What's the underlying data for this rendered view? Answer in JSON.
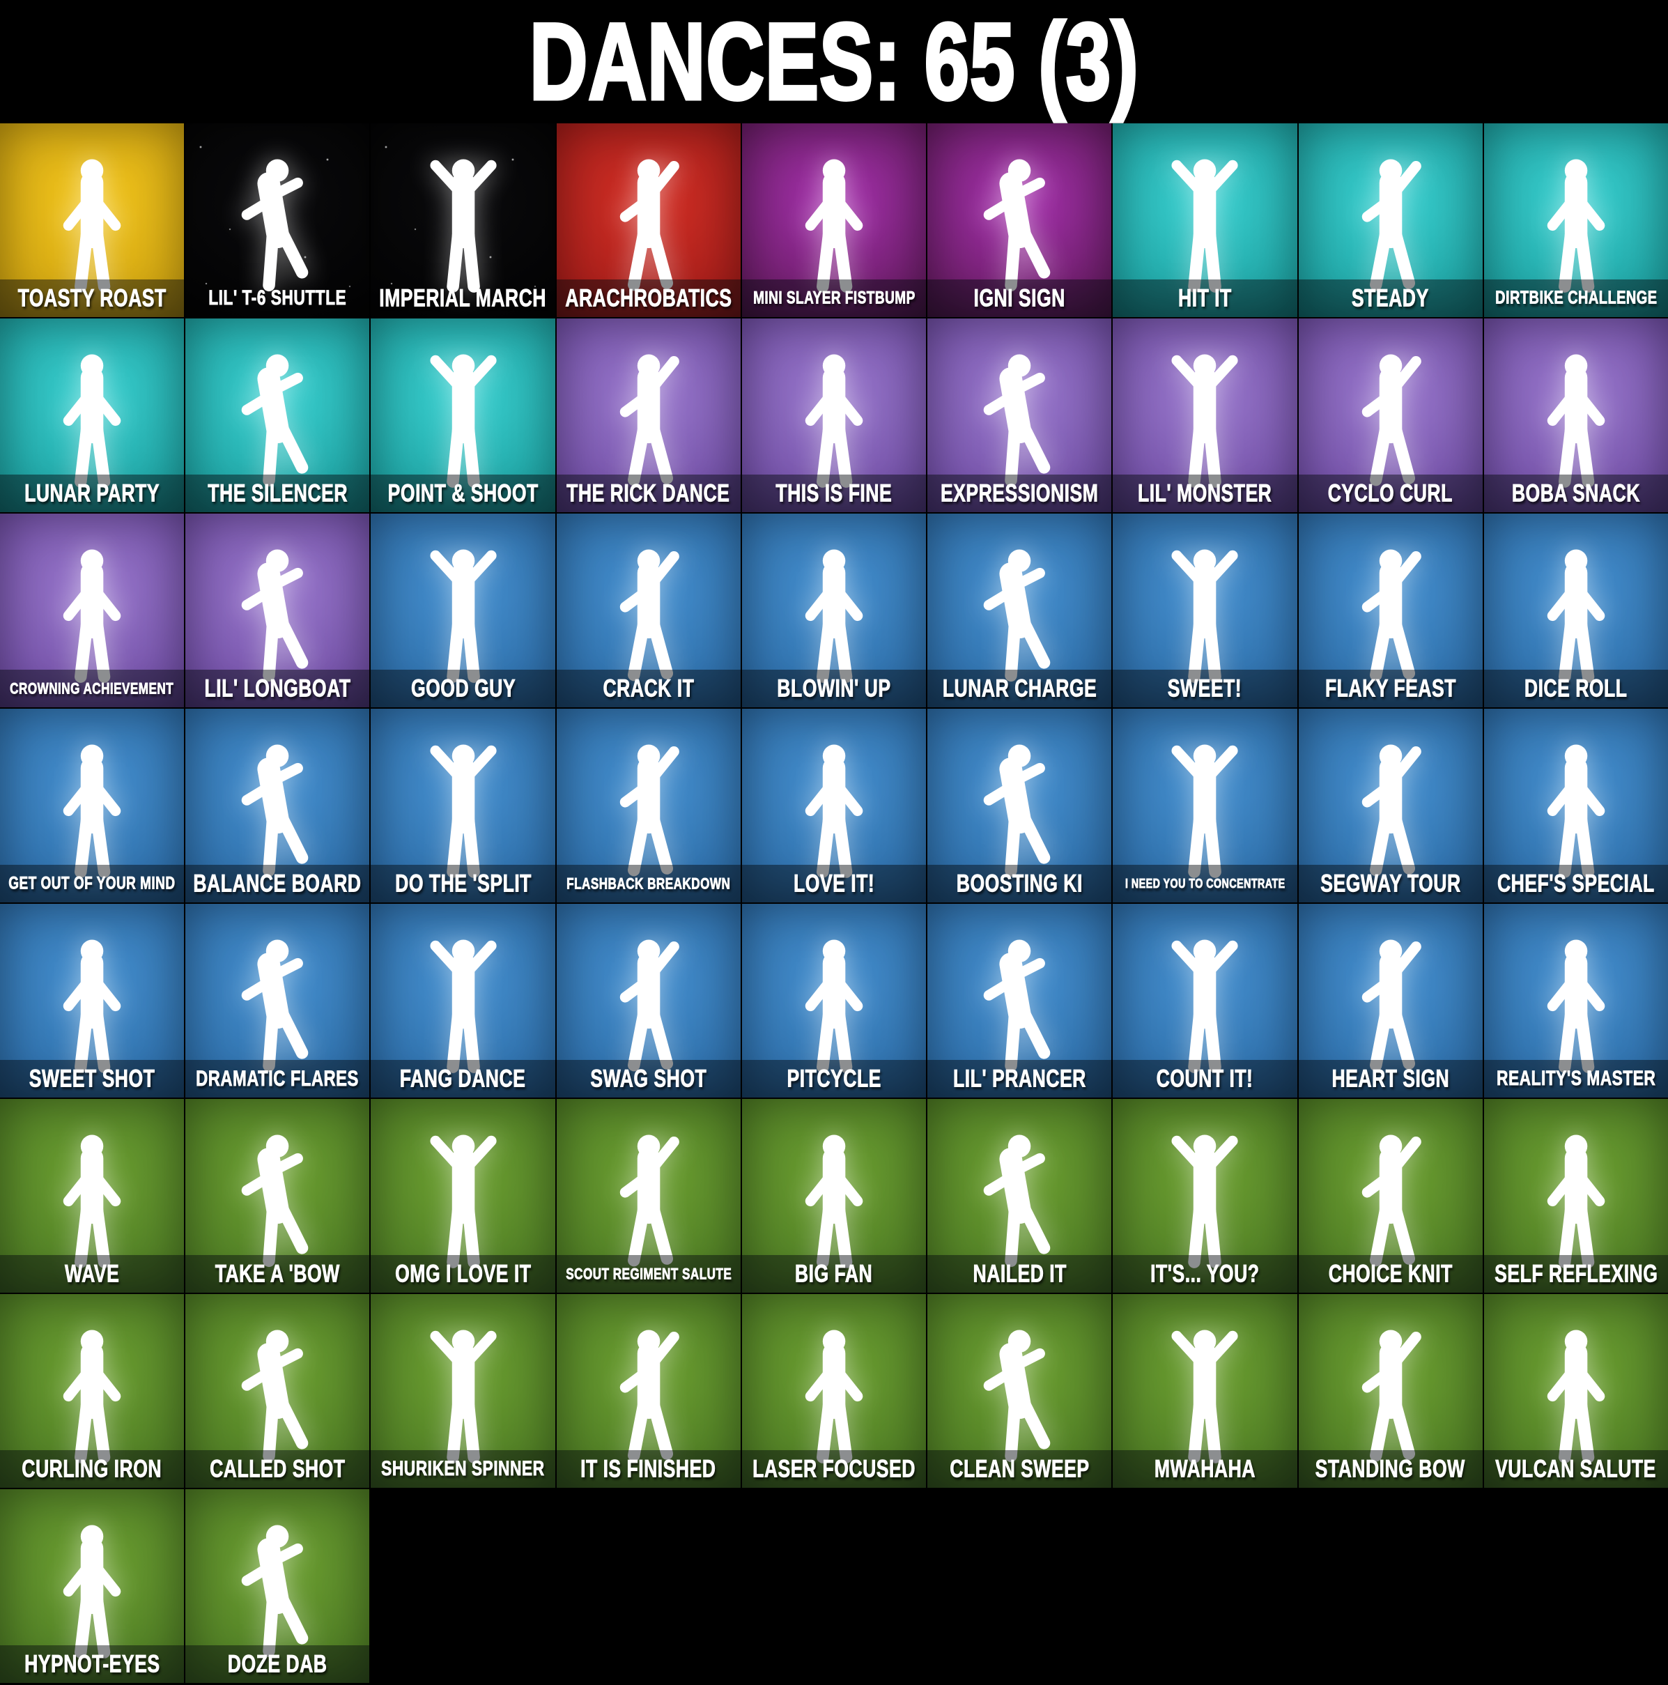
{
  "title": "DANCES: 65 (3)",
  "total_count": 65,
  "parenthetical_count": 3,
  "tile_icon": "dancer-silhouette-icon",
  "rarity_colors": {
    "gold": {
      "center": "#f2c51d",
      "edge": "#bd920a"
    },
    "dark": {
      "center": "#0b0b0d",
      "edge": "#000000"
    },
    "red": {
      "center": "#d23026",
      "edge": "#8c1212"
    },
    "magenta": {
      "center": "#a632ae",
      "edge": "#47103c"
    },
    "teal": {
      "center": "#3bd0d0",
      "edge": "#0d8a8a"
    },
    "purple": {
      "center": "#9a79cd",
      "edge": "#5c3892"
    },
    "blue": {
      "center": "#4690cf",
      "edge": "#1f5b95"
    },
    "green": {
      "center": "#6da032",
      "edge": "#3d681c"
    }
  },
  "rows": [
    {
      "tiles": [
        {
          "label": "TOASTY ROAST",
          "rarity": "gold"
        },
        {
          "label": "LIL' T-6 SHUTTLE",
          "rarity": "dark"
        },
        {
          "label": "IMPERIAL MARCH",
          "rarity": "dark"
        },
        {
          "label": "ARACHROBATICS",
          "rarity": "red"
        },
        {
          "label": "MINI SLAYER FISTBUMP",
          "rarity": "magenta"
        },
        {
          "label": "IGNI SIGN",
          "rarity": "magenta"
        },
        {
          "label": "HIT IT",
          "rarity": "teal"
        },
        {
          "label": "STEADY",
          "rarity": "teal"
        },
        {
          "label": "DIRTBIKE CHALLENGE",
          "rarity": "teal"
        }
      ]
    },
    {
      "tiles": [
        {
          "label": "LUNAR PARTY",
          "rarity": "teal"
        },
        {
          "label": "THE SILENCER",
          "rarity": "teal"
        },
        {
          "label": "POINT & SHOOT",
          "rarity": "teal"
        },
        {
          "label": "THE RICK DANCE",
          "rarity": "purple"
        },
        {
          "label": "THIS IS FINE",
          "rarity": "purple"
        },
        {
          "label": "EXPRESSIONISM",
          "rarity": "purple"
        },
        {
          "label": "LIL' MONSTER",
          "rarity": "purple"
        },
        {
          "label": "CYCLO CURL",
          "rarity": "purple"
        },
        {
          "label": "BOBA SNACK",
          "rarity": "purple"
        }
      ]
    },
    {
      "tiles": [
        {
          "label": "CROWNING ACHIEVEMENT",
          "rarity": "purple"
        },
        {
          "label": "LIL' LONGBOAT",
          "rarity": "purple"
        },
        {
          "label": "GOOD GUY",
          "rarity": "blue"
        },
        {
          "label": "CRACK IT",
          "rarity": "blue"
        },
        {
          "label": "BLOWIN' UP",
          "rarity": "blue"
        },
        {
          "label": "LUNAR CHARGE",
          "rarity": "blue"
        },
        {
          "label": "SWEET!",
          "rarity": "blue"
        },
        {
          "label": "FLAKY FEAST",
          "rarity": "blue"
        },
        {
          "label": "DICE ROLL",
          "rarity": "blue"
        }
      ]
    },
    {
      "tiles": [
        {
          "label": "GET OUT OF YOUR MIND",
          "rarity": "blue"
        },
        {
          "label": "BALANCE BOARD",
          "rarity": "blue"
        },
        {
          "label": "DO THE 'SPLIT",
          "rarity": "blue"
        },
        {
          "label": "FLASHBACK BREAKDOWN",
          "rarity": "blue"
        },
        {
          "label": "LOVE IT!",
          "rarity": "blue"
        },
        {
          "label": "BOOSTING KI",
          "rarity": "blue"
        },
        {
          "label": "I NEED YOU TO CONCENTRATE",
          "rarity": "blue"
        },
        {
          "label": "SEGWAY TOUR",
          "rarity": "blue"
        },
        {
          "label": "CHEF'S SPECIAL",
          "rarity": "blue"
        }
      ]
    },
    {
      "tiles": [
        {
          "label": "SWEET SHOT",
          "rarity": "blue"
        },
        {
          "label": "DRAMATIC FLARES",
          "rarity": "blue"
        },
        {
          "label": "FANG DANCE",
          "rarity": "blue"
        },
        {
          "label": "SWAG SHOT",
          "rarity": "blue"
        },
        {
          "label": "PITCYCLE",
          "rarity": "blue"
        },
        {
          "label": "LIL' PRANCER",
          "rarity": "blue"
        },
        {
          "label": "COUNT IT!",
          "rarity": "blue"
        },
        {
          "label": "HEART SIGN",
          "rarity": "blue"
        },
        {
          "label": "REALITY'S MASTER",
          "rarity": "blue"
        }
      ]
    },
    {
      "tiles": [
        {
          "label": "WAVE",
          "rarity": "green"
        },
        {
          "label": "TAKE A 'BOW",
          "rarity": "green"
        },
        {
          "label": "OMG I LOVE IT",
          "rarity": "green"
        },
        {
          "label": "SCOUT REGIMENT SALUTE",
          "rarity": "green"
        },
        {
          "label": "BIG FAN",
          "rarity": "green"
        },
        {
          "label": "NAILED IT",
          "rarity": "green"
        },
        {
          "label": "IT'S... YOU?",
          "rarity": "green"
        },
        {
          "label": "CHOICE KNIT",
          "rarity": "green"
        },
        {
          "label": "SELF REFLEXING",
          "rarity": "green"
        }
      ]
    },
    {
      "tiles": [
        {
          "label": "CURLING IRON",
          "rarity": "green"
        },
        {
          "label": "CALLED SHOT",
          "rarity": "green"
        },
        {
          "label": "SHURIKEN SPINNER",
          "rarity": "green"
        },
        {
          "label": "IT IS FINISHED",
          "rarity": "green"
        },
        {
          "label": "LASER FOCUSED",
          "rarity": "green"
        },
        {
          "label": "CLEAN SWEEP",
          "rarity": "green"
        },
        {
          "label": "MWAHAHA",
          "rarity": "green"
        },
        {
          "label": "STANDING BOW",
          "rarity": "green"
        },
        {
          "label": "VULCAN SALUTE",
          "rarity": "green"
        }
      ]
    },
    {
      "tiles": [
        {
          "label": "HYPNOT-EYES",
          "rarity": "green"
        },
        {
          "label": "DOZE DAB",
          "rarity": "green"
        }
      ]
    }
  ]
}
